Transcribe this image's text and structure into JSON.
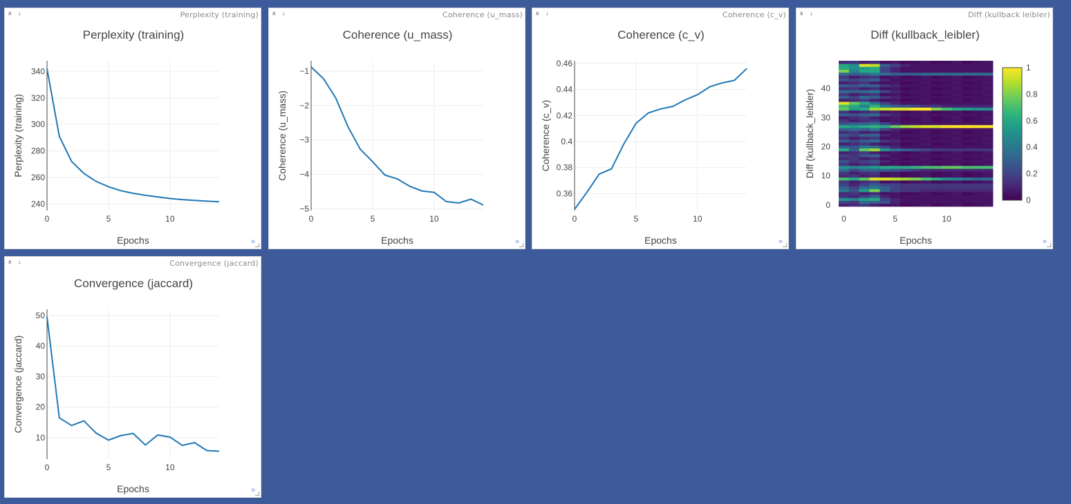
{
  "panes": [
    {
      "window_name": "Perplexity (training)",
      "close_label": "x",
      "download_label": "↓",
      "expand_label": "»",
      "chart_data": {
        "type": "line",
        "title": "Perplexity (training)",
        "xlabel": "Epochs",
        "ylabel": "Perplexity (training)",
        "x": [
          0,
          1,
          2,
          3,
          4,
          5,
          6,
          7,
          8,
          9,
          10,
          11,
          12,
          13,
          14
        ],
        "values": [
          342,
          291,
          272,
          263,
          257,
          253,
          250,
          248,
          246.5,
          245.3,
          244.1,
          243.3,
          242.7,
          242.1,
          241.6
        ],
        "xlim": [
          0,
          14
        ],
        "ylim": [
          235,
          348
        ],
        "xticks": [
          0,
          5,
          10
        ],
        "yticks": [
          240,
          260,
          280,
          300,
          320,
          340
        ],
        "xtick_labels": [
          "0",
          "5",
          "10"
        ],
        "ytick_labels": [
          "240",
          "260",
          "280",
          "300",
          "320",
          "340"
        ],
        "grid": true
      }
    },
    {
      "window_name": "Coherence (u_mass)",
      "close_label": "x",
      "download_label": "↓",
      "expand_label": "»",
      "chart_data": {
        "type": "line",
        "title": "Coherence (u_mass)",
        "xlabel": "Epochs",
        "ylabel": "Coherence (u_mass)",
        "x": [
          0,
          1,
          2,
          3,
          4,
          5,
          6,
          7,
          8,
          9,
          10,
          11,
          12,
          13,
          14
        ],
        "values": [
          -0.88,
          -1.22,
          -1.78,
          -2.62,
          -3.27,
          -3.63,
          -4.02,
          -4.13,
          -4.34,
          -4.48,
          -4.52,
          -4.79,
          -4.83,
          -4.72,
          -4.89
        ],
        "xlim": [
          0,
          14
        ],
        "ylim": [
          -5.05,
          -0.7
        ],
        "xticks": [
          0,
          5,
          10
        ],
        "yticks": [
          -5,
          -4,
          -3,
          -2,
          -1
        ],
        "xtick_labels": [
          "0",
          "5",
          "10"
        ],
        "ytick_labels": [
          "−5",
          "−4",
          "−3",
          "−2",
          "−1"
        ],
        "grid": true
      }
    },
    {
      "window_name": "Coherence (c_v)",
      "close_label": "x",
      "download_label": "↓",
      "expand_label": "»",
      "chart_data": {
        "type": "line",
        "title": "Coherence (c_v)",
        "xlabel": "Epochs",
        "ylabel": "Coherence (c_v)",
        "x": [
          0,
          1,
          2,
          3,
          4,
          5,
          6,
          7,
          8,
          9,
          10,
          11,
          12,
          13,
          14
        ],
        "values": [
          0.348,
          0.361,
          0.375,
          0.379,
          0.398,
          0.414,
          0.422,
          0.425,
          0.427,
          0.432,
          0.436,
          0.442,
          0.445,
          0.447,
          0.456
        ],
        "xlim": [
          0,
          14
        ],
        "ylim": [
          0.347,
          0.462
        ],
        "xticks": [
          0,
          5,
          10
        ],
        "yticks": [
          0.36,
          0.38,
          0.4,
          0.42,
          0.44,
          0.46
        ],
        "xtick_labels": [
          "0",
          "5",
          "10"
        ],
        "ytick_labels": [
          "0.36",
          "0.38",
          "0.4",
          "0.42",
          "0.44",
          "0.46"
        ],
        "grid": true
      }
    },
    {
      "window_name": "Diff (kullback leibler)",
      "close_label": "x",
      "download_label": "↓",
      "expand_label": "»",
      "chart_data": {
        "type": "heatmap",
        "title": "Diff (kullback_leibler)",
        "xlabel": "Epochs",
        "ylabel": "Diff (kullback_leibler)",
        "xlim": [
          -0.5,
          14.5
        ],
        "ylim": [
          -0.5,
          49.5
        ],
        "xticks": [
          0,
          5,
          10
        ],
        "yticks": [
          0,
          10,
          20,
          30,
          40
        ],
        "xtick_labels": [
          "0",
          "5",
          "10"
        ],
        "ytick_labels": [
          "0",
          "10",
          "20",
          "30",
          "40"
        ],
        "colorscale": "viridis",
        "colorbar": {
          "range": [
            0,
            1
          ],
          "ticks": [
            0,
            0.2,
            0.4,
            0.6,
            0.8,
            1
          ],
          "tick_labels": [
            "0",
            "0.2",
            "0.4",
            "0.6",
            "0.8",
            "1"
          ]
        },
        "n_epochs": 15,
        "n_topics": 50,
        "row_profiles": [
          {
            "y": 1,
            "values": [
              0.2,
              0.15,
              0.35,
              0.3,
              0.25,
              0.1,
              0.05,
              0.05,
              0.05,
              0.05,
              0.05,
              0.05,
              0.05,
              0.05,
              0.05
            ]
          },
          {
            "y": 2,
            "values": [
              0.5,
              0.45,
              0.55,
              0.6,
              0.2,
              0.1,
              0.05,
              0.05,
              0.05,
              0.05,
              0.05,
              0.05,
              0.05,
              0.05,
              0.05
            ]
          },
          {
            "y": 3,
            "values": [
              0.15,
              0.1,
              0.2,
              0.3,
              0.1,
              0.05,
              0.05,
              0.05,
              0.05,
              0.05,
              0.05,
              0.05,
              0.05,
              0.05,
              0.05
            ]
          },
          {
            "y": 5,
            "values": [
              0.4,
              0.25,
              0.55,
              0.8,
              0.3,
              0.2,
              0.15,
              0.15,
              0.1,
              0.1,
              0.1,
              0.1,
              0.1,
              0.1,
              0.1
            ]
          },
          {
            "y": 6,
            "values": [
              0.3,
              0.2,
              0.35,
              0.4,
              0.3,
              0.2,
              0.15,
              0.15,
              0.15,
              0.15,
              0.15,
              0.15,
              0.15,
              0.15,
              0.15
            ]
          },
          {
            "y": 7,
            "values": [
              0.2,
              0.1,
              0.2,
              0.3,
              0.2,
              0.2,
              0.15,
              0.15,
              0.15,
              0.15,
              0.15,
              0.15,
              0.15,
              0.15,
              0.15
            ]
          },
          {
            "y": 9,
            "values": [
              0.7,
              0.6,
              0.75,
              0.95,
              0.95,
              0.9,
              0.85,
              0.8,
              0.7,
              0.6,
              0.5,
              0.45,
              0.4,
              0.35,
              0.35
            ]
          },
          {
            "y": 12,
            "values": [
              0.35,
              0.2,
              0.3,
              0.3,
              0.3,
              0.25,
              0.2,
              0.15,
              0.1,
              0.1,
              0.1,
              0.1,
              0.1,
              0.1,
              0.1
            ]
          },
          {
            "y": 13,
            "values": [
              0.5,
              0.45,
              0.5,
              0.55,
              0.6,
              0.6,
              0.6,
              0.65,
              0.7,
              0.7,
              0.75,
              0.75,
              0.7,
              0.7,
              0.7
            ]
          },
          {
            "y": 15,
            "values": [
              0.25,
              0.15,
              0.2,
              0.25,
              0.1,
              0.05,
              0.05,
              0.05,
              0.05,
              0.05,
              0.05,
              0.05,
              0.05,
              0.05,
              0.05
            ]
          },
          {
            "y": 17,
            "values": [
              0.2,
              0.15,
              0.25,
              0.3,
              0.1,
              0.05,
              0.05,
              0.05,
              0.05,
              0.05,
              0.05,
              0.05,
              0.05,
              0.05,
              0.05
            ]
          },
          {
            "y": 19,
            "values": [
              0.6,
              0.3,
              0.75,
              0.85,
              0.5,
              0.35,
              0.3,
              0.25,
              0.2,
              0.15,
              0.15,
              0.15,
              0.15,
              0.15,
              0.15
            ]
          },
          {
            "y": 20,
            "values": [
              0.3,
              0.25,
              0.4,
              0.35,
              0.2,
              0.1,
              0.05,
              0.05,
              0.05,
              0.05,
              0.05,
              0.05,
              0.05,
              0.05,
              0.05
            ]
          },
          {
            "y": 22,
            "values": [
              0.3,
              0.2,
              0.3,
              0.35,
              0.15,
              0.1,
              0.05,
              0.05,
              0.05,
              0.05,
              0.05,
              0.05,
              0.05,
              0.05,
              0.05
            ]
          },
          {
            "y": 24,
            "values": [
              0.25,
              0.2,
              0.3,
              0.3,
              0.1,
              0.05,
              0.05,
              0.05,
              0.05,
              0.05,
              0.05,
              0.05,
              0.05,
              0.05,
              0.05
            ]
          },
          {
            "y": 26,
            "values": [
              0.3,
              0.35,
              0.3,
              0.4,
              0.2,
              0.1,
              0.05,
              0.05,
              0.05,
              0.05,
              0.05,
              0.05,
              0.05,
              0.05,
              0.05
            ]
          },
          {
            "y": 27,
            "values": [
              0.6,
              0.55,
              0.6,
              0.65,
              0.6,
              0.75,
              0.85,
              0.9,
              0.95,
              0.95,
              1,
              1,
              1,
              1,
              1
            ]
          },
          {
            "y": 28,
            "values": [
              0.25,
              0.3,
              0.3,
              0.35,
              0.2,
              0.1,
              0.05,
              0.05,
              0.05,
              0.05,
              0.05,
              0.05,
              0.05,
              0.05,
              0.05
            ]
          },
          {
            "y": 31,
            "values": [
              0.3,
              0.25,
              0.3,
              0.35,
              0.15,
              0.1,
              0.05,
              0.05,
              0.05,
              0.05,
              0.05,
              0.05,
              0.05,
              0.05,
              0.05
            ]
          },
          {
            "y": 33,
            "values": [
              0.75,
              0.55,
              0.6,
              0.85,
              0.9,
              0.95,
              0.95,
              1,
              1,
              0.8,
              0.7,
              0.6,
              0.55,
              0.5,
              0.5
            ]
          },
          {
            "y": 34,
            "values": [
              0.7,
              0.6,
              0.45,
              0.65,
              0.4,
              0.3,
              0.25,
              0.2,
              0.15,
              0.15,
              0.1,
              0.1,
              0.1,
              0.1,
              0.1
            ]
          },
          {
            "y": 35,
            "values": [
              0.95,
              0.75,
              0.6,
              0.4,
              0.2,
              0.1,
              0.05,
              0.05,
              0.05,
              0.05,
              0.05,
              0.05,
              0.05,
              0.05,
              0.05
            ]
          },
          {
            "y": 37,
            "values": [
              0.3,
              0.2,
              0.35,
              0.3,
              0.15,
              0.1,
              0.05,
              0.05,
              0.05,
              0.05,
              0.05,
              0.05,
              0.05,
              0.05,
              0.05
            ]
          },
          {
            "y": 39,
            "values": [
              0.35,
              0.3,
              0.35,
              0.4,
              0.2,
              0.1,
              0.05,
              0.05,
              0.05,
              0.05,
              0.05,
              0.05,
              0.05,
              0.05,
              0.05
            ]
          },
          {
            "y": 41,
            "values": [
              0.3,
              0.25,
              0.3,
              0.3,
              0.15,
              0.1,
              0.05,
              0.05,
              0.05,
              0.05,
              0.05,
              0.05,
              0.05,
              0.05,
              0.05
            ]
          },
          {
            "y": 43,
            "values": [
              0.25,
              0.2,
              0.25,
              0.3,
              0.1,
              0.05,
              0.05,
              0.05,
              0.05,
              0.05,
              0.05,
              0.05,
              0.05,
              0.05,
              0.05
            ]
          },
          {
            "y": 45,
            "values": [
              0.35,
              0.3,
              0.35,
              0.4,
              0.35,
              0.3,
              0.3,
              0.3,
              0.35,
              0.35,
              0.35,
              0.35,
              0.35,
              0.35,
              0.35
            ]
          },
          {
            "y": 46,
            "values": [
              0.8,
              0.45,
              0.6,
              0.6,
              0.2,
              0.1,
              0.05,
              0.05,
              0.05,
              0.05,
              0.05,
              0.05,
              0.05,
              0.05,
              0.05
            ]
          },
          {
            "y": 47,
            "values": [
              0.6,
              0.5,
              0.55,
              0.6,
              0.2,
              0.1,
              0.05,
              0.05,
              0.05,
              0.05,
              0.05,
              0.05,
              0.05,
              0.05,
              0.05
            ]
          },
          {
            "y": 48,
            "values": [
              0.6,
              0.5,
              0.95,
              0.9,
              0.3,
              0.2,
              0.1,
              0.05,
              0.05,
              0.05,
              0.05,
              0.05,
              0.05,
              0.05,
              0.05
            ]
          }
        ]
      }
    },
    {
      "window_name": "Convergence (jaccard)",
      "close_label": "x",
      "download_label": "↓",
      "expand_label": "»",
      "chart_data": {
        "type": "line",
        "title": "Convergence (jaccard)",
        "xlabel": "Epochs",
        "ylabel": "Convergence (jaccard)",
        "x": [
          0,
          1,
          2,
          3,
          4,
          5,
          6,
          7,
          8,
          9,
          10,
          11,
          12,
          13,
          14
        ],
        "values": [
          49.5,
          16.5,
          14,
          15.5,
          11.5,
          9.2,
          10.7,
          11.4,
          7.6,
          10.9,
          10.2,
          7.5,
          8.4,
          5.8,
          5.6
        ],
        "xlim": [
          0,
          14
        ],
        "ylim": [
          3,
          52
        ],
        "xticks": [
          0,
          5,
          10
        ],
        "yticks": [
          10,
          20,
          30,
          40,
          50
        ],
        "xtick_labels": [
          "0",
          "5",
          "10"
        ],
        "ytick_labels": [
          "10",
          "20",
          "30",
          "40",
          "50"
        ],
        "grid": true
      }
    }
  ]
}
